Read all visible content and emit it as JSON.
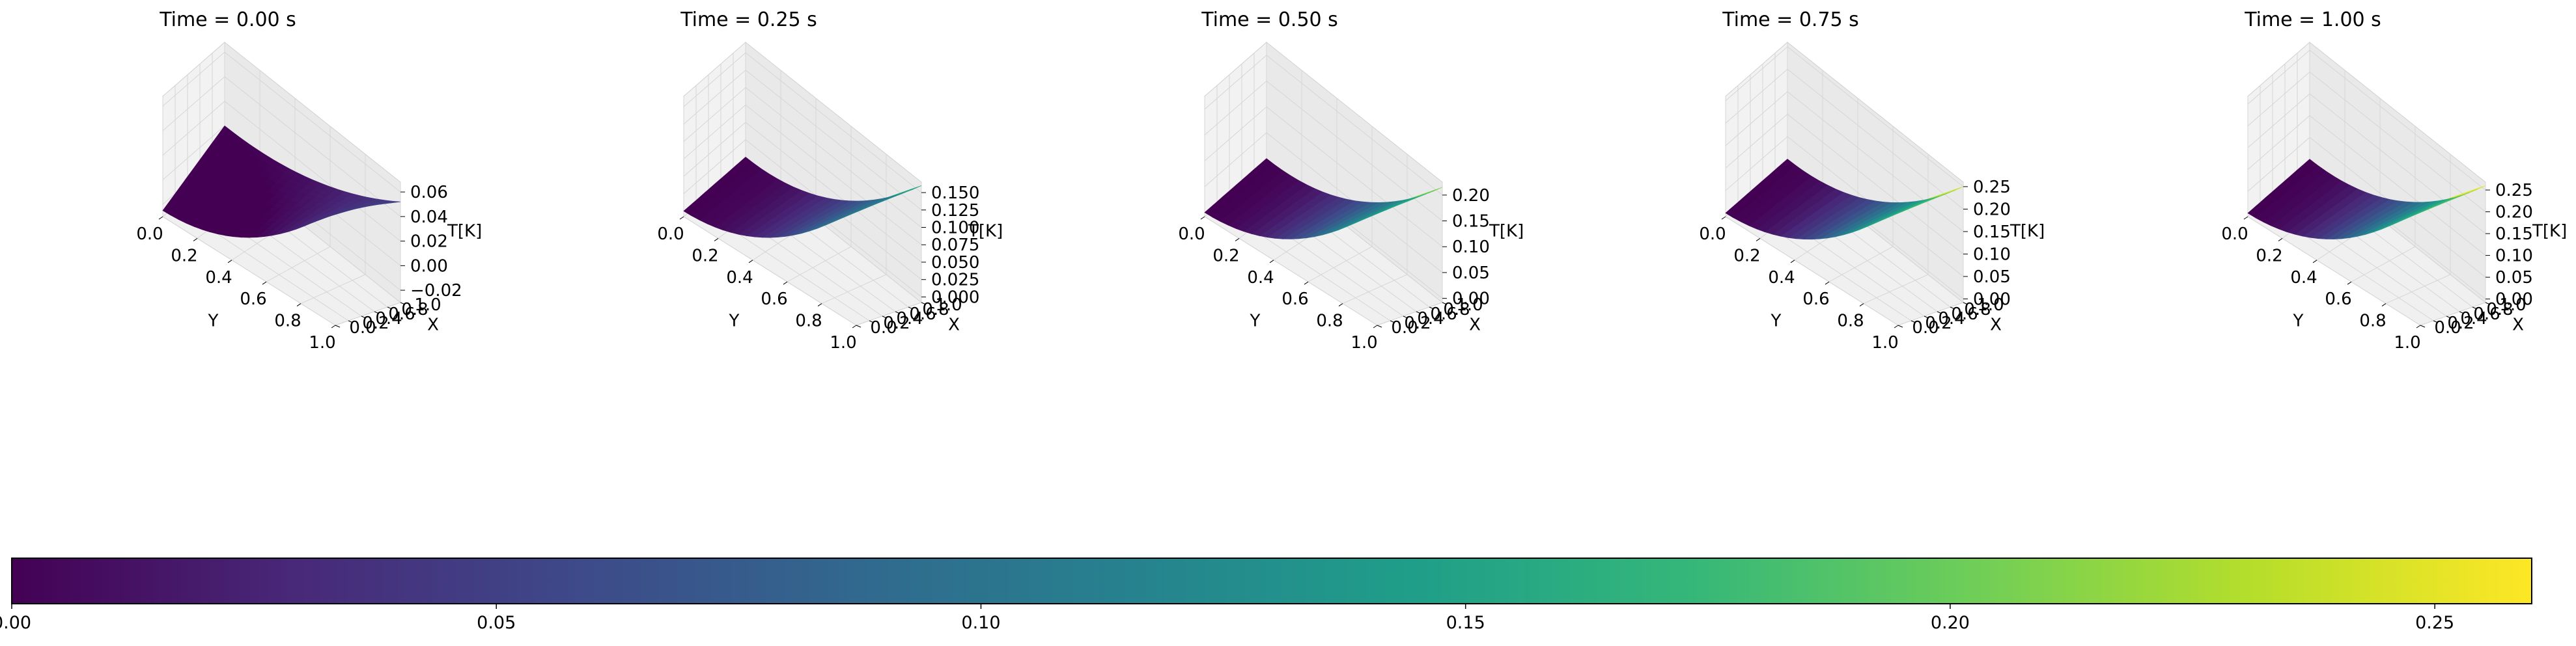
{
  "figure": {
    "panel_title_prefix": "Time = ",
    "panel_title_suffix": " s"
  },
  "chart_data": [
    {
      "type": "surface3d",
      "title": "Time = 0.00 s",
      "time": 0.0,
      "xlabel": "Y",
      "ylabel": "X",
      "zlabel": "T[K]",
      "y_ticks": [
        "0.0",
        "0.2",
        "0.4",
        "0.6",
        "0.8",
        "1.0"
      ],
      "x_ticks": [
        "0.0",
        "0.2",
        "0.4",
        "0.6",
        "0.8",
        "1.0"
      ],
      "z_ticks": [
        "−0.02",
        "0.00",
        "0.02",
        "0.04",
        "0.06"
      ],
      "z_tick_values": [
        -0.02,
        0.0,
        0.02,
        0.04,
        0.06
      ],
      "zlim": [
        -0.03,
        0.068
      ],
      "surface": {
        "X_range": [
          0,
          1
        ],
        "Y_range": [
          0,
          1
        ],
        "corner_T": {
          "X0_Y0": -0.025,
          "X1_Y0": 0.0,
          "X0_Y1": 0.064,
          "X1_Y1": 0.052
        }
      }
    },
    {
      "type": "surface3d",
      "title": "Time = 0.25 s",
      "time": 0.25,
      "xlabel": "Y",
      "ylabel": "X",
      "zlabel": "T[K]",
      "y_ticks": [
        "0.0",
        "0.2",
        "0.4",
        "0.6",
        "0.8",
        "1.0"
      ],
      "x_ticks": [
        "0.0",
        "0.2",
        "0.4",
        "0.6",
        "0.8",
        "1.0"
      ],
      "z_ticks": [
        "0.000",
        "0.025",
        "0.050",
        "0.075",
        "0.100",
        "0.125",
        "0.150"
      ],
      "z_tick_values": [
        0.0,
        0.025,
        0.05,
        0.075,
        0.1,
        0.125,
        0.15
      ],
      "zlim": [
        -0.008,
        0.165
      ],
      "surface": {
        "X_range": [
          0,
          1
        ],
        "Y_range": [
          0,
          1
        ],
        "corner_T": {
          "X0_Y0": 0.0,
          "X1_Y0": 0.0,
          "X0_Y1": 0.16,
          "X1_Y1": 0.16
        }
      }
    },
    {
      "type": "surface3d",
      "title": "Time = 0.50 s",
      "time": 0.5,
      "xlabel": "Y",
      "ylabel": "X",
      "zlabel": "T[K]",
      "y_ticks": [
        "0.0",
        "0.2",
        "0.4",
        "0.6",
        "0.8",
        "1.0"
      ],
      "x_ticks": [
        "0.0",
        "0.2",
        "0.4",
        "0.6",
        "0.8",
        "1.0"
      ],
      "z_ticks": [
        "0.00",
        "0.05",
        "0.10",
        "0.15",
        "0.20"
      ],
      "z_tick_values": [
        0.0,
        0.05,
        0.1,
        0.15,
        0.2
      ],
      "zlim": [
        -0.008,
        0.225
      ],
      "surface": {
        "X_range": [
          0,
          1
        ],
        "Y_range": [
          0,
          1
        ],
        "corner_T": {
          "X0_Y0": 0.0,
          "X1_Y0": 0.0,
          "X0_Y1": 0.215,
          "X1_Y1": 0.215
        }
      }
    },
    {
      "type": "surface3d",
      "title": "Time = 0.75 s",
      "time": 0.75,
      "xlabel": "Y",
      "ylabel": "X",
      "zlabel": "T[K]",
      "y_ticks": [
        "0.0",
        "0.2",
        "0.4",
        "0.6",
        "0.8",
        "1.0"
      ],
      "x_ticks": [
        "0.0",
        "0.2",
        "0.4",
        "0.6",
        "0.8",
        "1.0"
      ],
      "z_ticks": [
        "0.00",
        "0.05",
        "0.10",
        "0.15",
        "0.20",
        "0.25"
      ],
      "z_tick_values": [
        0.0,
        0.05,
        0.1,
        0.15,
        0.2,
        0.25
      ],
      "zlim": [
        -0.008,
        0.26
      ],
      "surface": {
        "X_range": [
          0,
          1
        ],
        "Y_range": [
          0,
          1
        ],
        "corner_T": {
          "X0_Y0": 0.0,
          "X1_Y0": 0.0,
          "X0_Y1": 0.25,
          "X1_Y1": 0.25
        }
      }
    },
    {
      "type": "surface3d",
      "title": "Time = 1.00 s",
      "time": 1.0,
      "xlabel": "Y",
      "ylabel": "X",
      "zlabel": "T[K]",
      "y_ticks": [
        "0.0",
        "0.2",
        "0.4",
        "0.6",
        "0.8",
        "1.0"
      ],
      "x_ticks": [
        "0.0",
        "0.2",
        "0.4",
        "0.6",
        "0.8",
        "1.0"
      ],
      "z_ticks": [
        "0.00",
        "0.05",
        "0.10",
        "0.15",
        "0.20",
        "0.25"
      ],
      "z_tick_values": [
        0.0,
        0.05,
        0.1,
        0.15,
        0.2,
        0.25
      ],
      "zlim": [
        -0.008,
        0.268
      ],
      "surface": {
        "X_range": [
          0,
          1
        ],
        "Y_range": [
          0,
          1
        ],
        "corner_T": {
          "X0_Y0": 0.0,
          "X1_Y0": 0.0,
          "X0_Y1": 0.26,
          "X1_Y1": 0.26
        }
      }
    }
  ],
  "colorbar": {
    "type": "colorbar",
    "colormap": "viridis",
    "orientation": "horizontal",
    "range": [
      0.0,
      0.26
    ],
    "ticks": [
      "0.00",
      "0.05",
      "0.10",
      "0.15",
      "0.20",
      "0.25"
    ],
    "tick_values": [
      0.0,
      0.05,
      0.1,
      0.15,
      0.2,
      0.25
    ],
    "colors": [
      "#440154",
      "#482878",
      "#3e4989",
      "#31688e",
      "#26828e",
      "#1f9e89",
      "#35b779",
      "#6ece58",
      "#b5de2b",
      "#fde725"
    ]
  }
}
